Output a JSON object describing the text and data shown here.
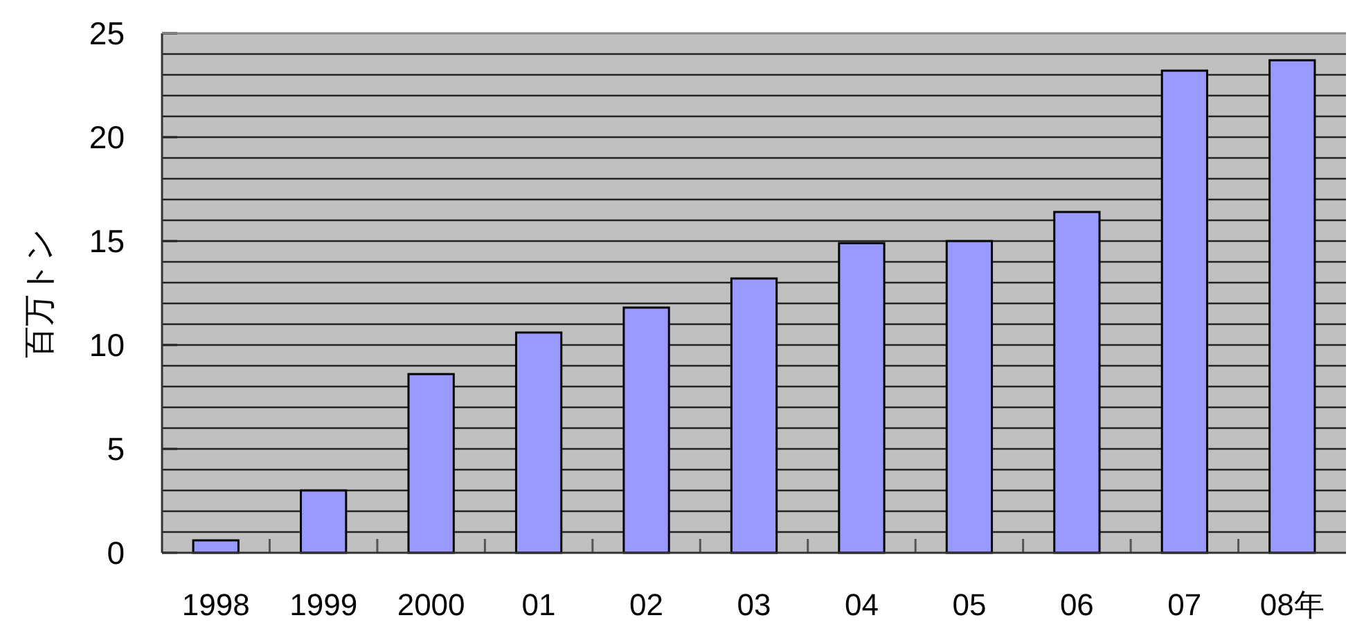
{
  "chart_data": {
    "type": "bar",
    "ylabel": "百万トン",
    "categories": [
      "1998",
      "1999",
      "2000",
      "01",
      "02",
      "03",
      "04",
      "05",
      "06",
      "07",
      "08年"
    ],
    "series": [
      {
        "color": "#9999ff",
        "values": [
          0.6,
          3.0,
          8.6,
          10.6,
          11.8,
          13.2,
          14.9,
          15.0,
          16.4,
          23.2,
          23.7
        ]
      }
    ],
    "ylim": [
      0,
      25
    ],
    "yticks": [
      0,
      {
        "value": 1,
        "label": null
      },
      {
        "value": 2,
        "label": null
      },
      {
        "value": 3,
        "label": null
      },
      {
        "value": 4,
        "label": null
      },
      5,
      {
        "value": 6,
        "label": null
      },
      {
        "value": 7,
        "label": null
      },
      {
        "value": 8,
        "label": null
      },
      {
        "value": 9,
        "label": null
      },
      10,
      {
        "value": 11,
        "label": null
      },
      {
        "value": 12,
        "label": null
      },
      {
        "value": 13,
        "label": null
      },
      {
        "value": 14,
        "label": null
      },
      15,
      {
        "value": 16,
        "label": null
      },
      {
        "value": 17,
        "label": null
      },
      {
        "value": 18,
        "label": null
      },
      {
        "value": 19,
        "label": null
      },
      20,
      {
        "value": 21,
        "label": null
      },
      {
        "value": 22,
        "label": null
      },
      {
        "value": 23,
        "label": null
      },
      {
        "value": 24,
        "label": null
      },
      25
    ],
    "grid": "y"
  }
}
